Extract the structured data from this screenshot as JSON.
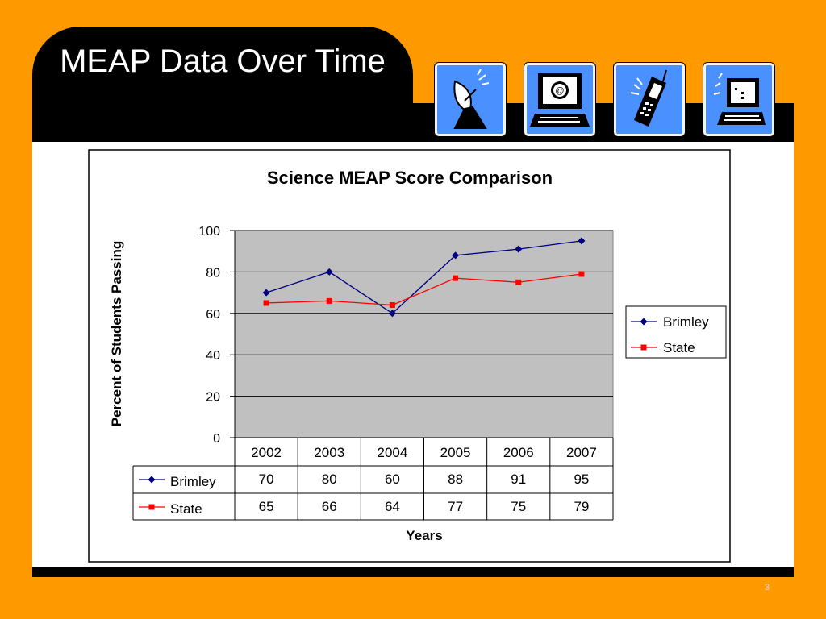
{
  "slide": {
    "title": "MEAP Data Over Time",
    "page_number": "3",
    "icons": [
      "satellite-dish-icon",
      "computer-email-icon",
      "mobile-phone-icon",
      "computer-terminal-icon"
    ],
    "colors": {
      "background": "#ff9900",
      "band": "#000000",
      "icon_blue": "#4a90ff"
    }
  },
  "chart_data": {
    "type": "line",
    "title": "Science MEAP Score Comparison",
    "xlabel": "Years",
    "ylabel": "Percent of Students Passing",
    "categories": [
      "2002",
      "2003",
      "2004",
      "2005",
      "2006",
      "2007"
    ],
    "ylim": [
      0,
      100
    ],
    "yticks": [
      "0",
      "20",
      "40",
      "60",
      "80",
      "100"
    ],
    "grid": true,
    "legend_position": "right",
    "series": [
      {
        "name": "Brimley",
        "values": [
          70,
          80,
          60,
          88,
          91,
          95
        ],
        "labels": [
          "70",
          "80",
          "60",
          "88",
          "91",
          "95"
        ],
        "color": "#000080",
        "marker": "diamond"
      },
      {
        "name": "State",
        "values": [
          65,
          66,
          64,
          77,
          75,
          79
        ],
        "labels": [
          "65",
          "66",
          "64",
          "77",
          "75",
          "79"
        ],
        "color": "#ff0000",
        "marker": "square"
      }
    ]
  }
}
